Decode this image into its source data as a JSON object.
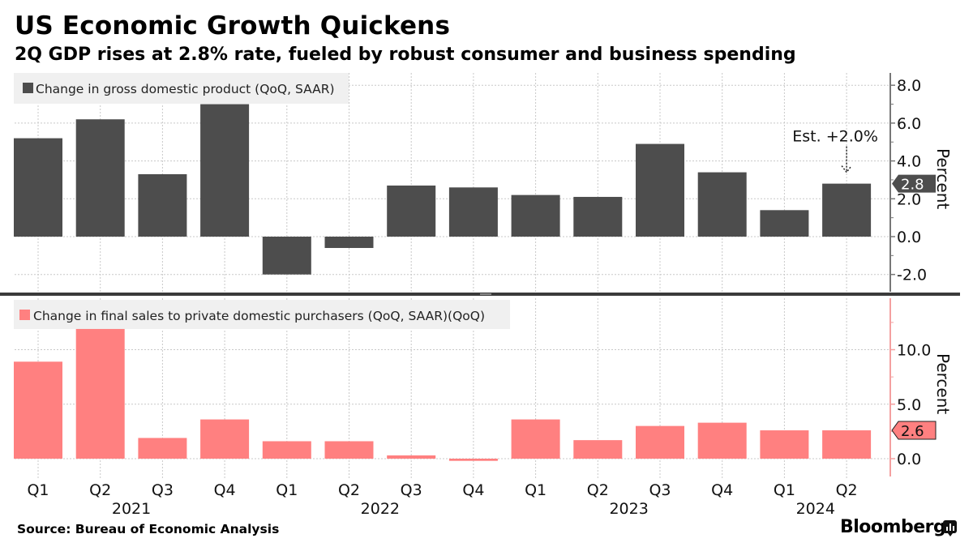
{
  "header": {
    "title": "US Economic Growth Quickens",
    "subtitle": "2Q GDP rises at 2.8% rate, fueled by robust consumer and business spending"
  },
  "footer": {
    "source": "Source: Bureau of Economic Analysis",
    "brand": "Bloomberg",
    "brand_icon": "bloomberg-chart-icon"
  },
  "colors": {
    "gdp_bar": "#4d4d4d",
    "sales_bar": "#ff8080",
    "grid": "#c8c8c8",
    "legend_bg": "#f0f0f0"
  },
  "chart_data": [
    {
      "type": "bar",
      "panel": "top",
      "series": [
        {
          "name": "Change in gross domestic product (QoQ, SAAR)",
          "values": [
            5.2,
            6.2,
            3.3,
            7.0,
            -2.0,
            -0.6,
            2.7,
            2.6,
            2.2,
            2.1,
            4.9,
            3.4,
            1.4,
            2.8
          ]
        }
      ],
      "categories": [
        "Q1",
        "Q2",
        "Q3",
        "Q4",
        "Q1",
        "Q2",
        "Q3",
        "Q4",
        "Q1",
        "Q2",
        "Q3",
        "Q4",
        "Q1",
        "Q2"
      ],
      "ylabel": "Percent",
      "ylim": [
        -2.7,
        8.7
      ],
      "yticks": [
        "8.0",
        "6.0",
        "4.0",
        "2.0",
        "0.0",
        "-2.0"
      ],
      "ytick_values": [
        8,
        6,
        4,
        2,
        0,
        -2
      ],
      "minor_tick_values": [
        7,
        5,
        3,
        1,
        -1
      ],
      "last_value_label": "2.8",
      "annotation": {
        "text": "Est. +2.0%",
        "category_index": 13
      },
      "grid": true,
      "legend": "top-left"
    },
    {
      "type": "bar",
      "panel": "bottom",
      "series": [
        {
          "name": "Change in final sales to private domestic purchasers (QoQ, SAAR)(QoQ)",
          "values": [
            8.9,
            11.9,
            1.9,
            3.6,
            1.6,
            1.6,
            0.3,
            -0.2,
            3.6,
            1.7,
            3.0,
            3.3,
            2.6,
            2.6
          ]
        }
      ],
      "categories": [
        "Q1",
        "Q2",
        "Q3",
        "Q4",
        "Q1",
        "Q2",
        "Q3",
        "Q4",
        "Q1",
        "Q2",
        "Q3",
        "Q4",
        "Q1",
        "Q2"
      ],
      "years": [
        {
          "label": "2021",
          "start_index": 0,
          "end_index": 3
        },
        {
          "label": "2022",
          "start_index": 4,
          "end_index": 7
        },
        {
          "label": "2023",
          "start_index": 8,
          "end_index": 11
        },
        {
          "label": "2024",
          "start_index": 12,
          "end_index": 13
        }
      ],
      "ylabel": "Percent",
      "ylim": [
        -0.8,
        14.8
      ],
      "yticks": [
        "10.0",
        "5.0",
        "0.0"
      ],
      "ytick_values": [
        10,
        5,
        0
      ],
      "minor_tick_values": [
        12.5,
        7.5,
        2.5
      ],
      "last_value_label": "2.6",
      "grid": true,
      "legend": "top-left"
    }
  ]
}
